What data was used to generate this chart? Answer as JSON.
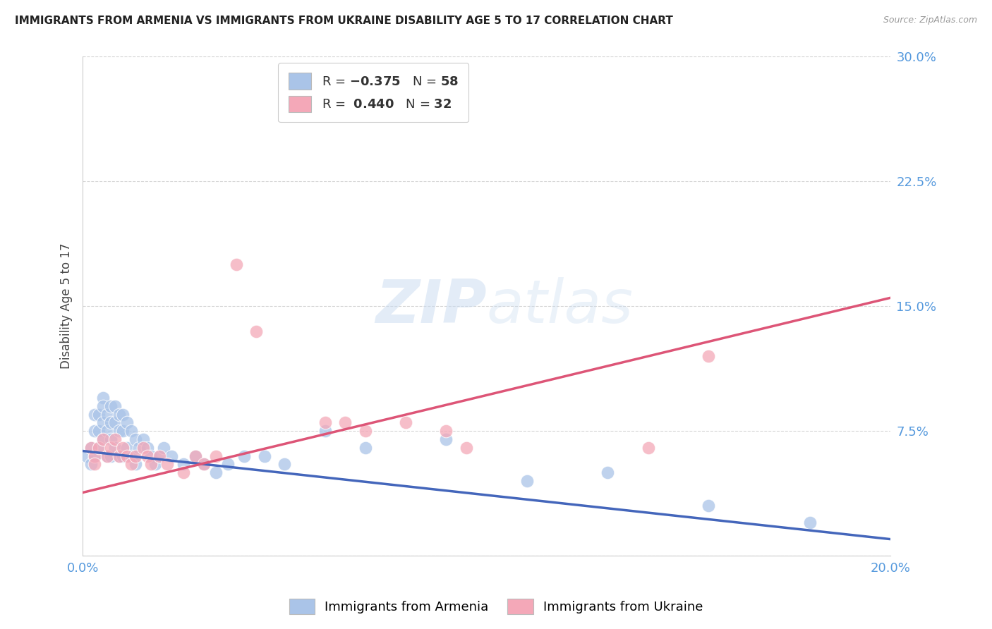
{
  "title": "IMMIGRANTS FROM ARMENIA VS IMMIGRANTS FROM UKRAINE DISABILITY AGE 5 TO 17 CORRELATION CHART",
  "source": "Source: ZipAtlas.com",
  "ylabel": "Disability Age 5 to 17",
  "xlim": [
    0.0,
    0.2
  ],
  "ylim": [
    0.0,
    0.3
  ],
  "xticks": [
    0.0,
    0.05,
    0.1,
    0.15,
    0.2
  ],
  "xticklabels": [
    "0.0%",
    "",
    "",
    "",
    "20.0%"
  ],
  "yticks": [
    0.0,
    0.075,
    0.15,
    0.225,
    0.3
  ],
  "yticklabels": [
    "",
    "7.5%",
    "15.0%",
    "22.5%",
    "30.0%"
  ],
  "grid_color": "#d0d0d0",
  "background_color": "#ffffff",
  "armenia_color": "#aac4e8",
  "ukraine_color": "#f4a8b8",
  "armenia_line_color": "#4466bb",
  "ukraine_line_color": "#dd5577",
  "armenia_R": -0.375,
  "armenia_N": 58,
  "ukraine_R": 0.44,
  "ukraine_N": 32,
  "armenia_line_x0": 0.0,
  "armenia_line_y0": 0.063,
  "armenia_line_x1": 0.2,
  "armenia_line_y1": 0.01,
  "ukraine_line_x0": 0.0,
  "ukraine_line_y0": 0.038,
  "ukraine_line_x1": 0.2,
  "ukraine_line_y1": 0.155,
  "armenia_x": [
    0.001,
    0.002,
    0.002,
    0.003,
    0.003,
    0.003,
    0.004,
    0.004,
    0.004,
    0.005,
    0.005,
    0.005,
    0.005,
    0.006,
    0.006,
    0.006,
    0.007,
    0.007,
    0.007,
    0.007,
    0.008,
    0.008,
    0.008,
    0.009,
    0.009,
    0.009,
    0.01,
    0.01,
    0.01,
    0.011,
    0.011,
    0.012,
    0.012,
    0.013,
    0.013,
    0.014,
    0.015,
    0.016,
    0.017,
    0.018,
    0.019,
    0.02,
    0.022,
    0.025,
    0.028,
    0.03,
    0.033,
    0.036,
    0.04,
    0.045,
    0.05,
    0.06,
    0.07,
    0.09,
    0.11,
    0.13,
    0.155,
    0.18
  ],
  "armenia_y": [
    0.06,
    0.065,
    0.055,
    0.085,
    0.075,
    0.06,
    0.085,
    0.075,
    0.065,
    0.095,
    0.09,
    0.08,
    0.07,
    0.085,
    0.075,
    0.06,
    0.09,
    0.08,
    0.07,
    0.06,
    0.09,
    0.08,
    0.065,
    0.085,
    0.075,
    0.06,
    0.085,
    0.075,
    0.06,
    0.08,
    0.065,
    0.075,
    0.06,
    0.07,
    0.055,
    0.065,
    0.07,
    0.065,
    0.06,
    0.055,
    0.06,
    0.065,
    0.06,
    0.055,
    0.06,
    0.055,
    0.05,
    0.055,
    0.06,
    0.06,
    0.055,
    0.075,
    0.065,
    0.07,
    0.045,
    0.05,
    0.03,
    0.02
  ],
  "ukraine_x": [
    0.002,
    0.003,
    0.003,
    0.004,
    0.005,
    0.006,
    0.007,
    0.008,
    0.009,
    0.01,
    0.011,
    0.012,
    0.013,
    0.015,
    0.016,
    0.017,
    0.019,
    0.021,
    0.025,
    0.028,
    0.03,
    0.033,
    0.038,
    0.043,
    0.06,
    0.065,
    0.07,
    0.08,
    0.09,
    0.095,
    0.14,
    0.155
  ],
  "ukraine_y": [
    0.065,
    0.06,
    0.055,
    0.065,
    0.07,
    0.06,
    0.065,
    0.07,
    0.06,
    0.065,
    0.06,
    0.055,
    0.06,
    0.065,
    0.06,
    0.055,
    0.06,
    0.055,
    0.05,
    0.06,
    0.055,
    0.06,
    0.175,
    0.135,
    0.08,
    0.08,
    0.075,
    0.08,
    0.075,
    0.065,
    0.065,
    0.12
  ]
}
